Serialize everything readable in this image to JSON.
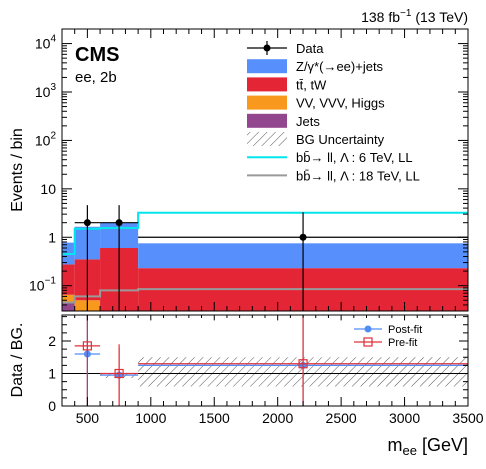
{
  "header": {
    "lumi": "138 fb",
    "lumi_exp": "−1",
    "lumi_tail": " (13 TeV)"
  },
  "cms": {
    "label": "CMS",
    "channel": "ee, 2b"
  },
  "chart_data": [
    {
      "type": "bar",
      "panel": "main",
      "ylabel": "Events / bin",
      "yscale": "log",
      "ylim": [
        0.03,
        20000
      ],
      "xlim": [
        300,
        3500
      ],
      "grid": false,
      "legend_position": "top-right",
      "y_ticks": [
        {
          "v": 0.1,
          "base": "10",
          "exp": "−1"
        },
        {
          "v": 1,
          "text": "1"
        },
        {
          "v": 10,
          "text": "10"
        },
        {
          "v": 100,
          "base": "10",
          "exp": "2"
        },
        {
          "v": 1000,
          "base": "10",
          "exp": "3"
        },
        {
          "v": 10000,
          "base": "10",
          "exp": "4"
        }
      ],
      "bins": [
        {
          "lo": 300,
          "hi": 400
        },
        {
          "lo": 400,
          "hi": 600
        },
        {
          "lo": 600,
          "hi": 900
        },
        {
          "lo": 900,
          "hi": 3500
        }
      ],
      "stack": [
        {
          "name": "Jets",
          "color": "#92468e",
          "values": [
            0.045,
            0.0,
            0.0,
            0.0
          ]
        },
        {
          "name": "VV, VVV, Higgs",
          "color": "#f8981d",
          "values": [
            0.02,
            0.05,
            0.0,
            0.0
          ]
        },
        {
          "name": "tt̄, tW",
          "color": "#e42536",
          "values": [
            0.21,
            0.3,
            0.6,
            0.23
          ]
        },
        {
          "name": "Z/γ*(→ee)+jets",
          "color": "#5790fc",
          "values": [
            0.5,
            1.3,
            1.4,
            0.52
          ]
        }
      ],
      "data": {
        "name": "Data",
        "points": [
          {
            "x": 500,
            "y": 2,
            "xerr": [
              400,
              600
            ],
            "yerr": [
              0.03,
              4.6
            ]
          },
          {
            "x": 750,
            "y": 2,
            "xerr": [
              600,
              900
            ],
            "yerr": [
              0.03,
              4.6
            ]
          },
          {
            "x": 2200,
            "y": 1,
            "xerr": [
              900,
              3500
            ],
            "yerr": [
              0.03,
              3.3
            ]
          }
        ]
      },
      "signals": [
        {
          "name": "bb̄→ ll,   Λ : 6 TeV, LL",
          "color": "#00e5ee",
          "edges": [
            300,
            400,
            600,
            900,
            3500
          ],
          "values": [
            0.45,
            1.5,
            1.55,
            3.2
          ]
        },
        {
          "name": "bb̄→ ll,   Λ : 18 TeV, LL",
          "color": "#9a9a9a",
          "edges": [
            300,
            400,
            600,
            900,
            3500
          ],
          "values": [
            0.045,
            0.06,
            0.08,
            0.085
          ]
        }
      ],
      "uncertainty_label": "BG Uncertainty",
      "legend": [
        {
          "kind": "data",
          "label": "Data"
        },
        {
          "kind": "fill",
          "color": "#5790fc",
          "label": "Z/γ*(→ee)+jets"
        },
        {
          "kind": "fill",
          "color": "#e42536",
          "label": "tt̄, tW"
        },
        {
          "kind": "fill",
          "color": "#f8981d",
          "label": "VV, VVV, Higgs"
        },
        {
          "kind": "fill",
          "color": "#92468e",
          "label": "Jets"
        },
        {
          "kind": "hatch",
          "label": "BG Uncertainty"
        },
        {
          "kind": "line",
          "color": "#00e5ee",
          "label": "bb̄→ ll,   Λ : 6 TeV, LL"
        },
        {
          "kind": "line",
          "color": "#9a9a9a",
          "label": "bb̄→ ll,   Λ : 18 TeV, LL"
        }
      ]
    },
    {
      "type": "scatter",
      "panel": "ratio",
      "ylabel": "Data / BG.",
      "xlabel": "m",
      "xlabel_sub": "ee",
      "xlabel_unit": " [GeV]",
      "ylim": [
        0,
        2.8
      ],
      "xlim": [
        300,
        3500
      ],
      "x_ticks": [
        500,
        1000,
        1500,
        2000,
        2500,
        3000,
        3500
      ],
      "y_ticks": [
        0,
        1,
        2
      ],
      "unity_line": 1,
      "uncertainty_band": [
        {
          "lo": 300,
          "hi": 400,
          "y0": 1.0,
          "y1": 1.0
        },
        {
          "lo": 400,
          "hi": 600,
          "y0": 1.0,
          "y1": 1.0
        },
        {
          "lo": 600,
          "hi": 900,
          "y0": 0.86,
          "y1": 1.0
        },
        {
          "lo": 900,
          "hi": 3500,
          "y0": 0.6,
          "y1": 1.5
        }
      ],
      "series": [
        {
          "name": "Post-fit",
          "color": "#4f8ef7",
          "marker": "circle",
          "points": [
            {
              "x": 500,
              "y": 1.6,
              "xerr": [
                400,
                600
              ],
              "yerr": [
                0.0,
                2.8
              ]
            },
            {
              "x": 750,
              "y": 0.95,
              "xerr": [
                600,
                900
              ],
              "yerr": [
                0.0,
                1.8
              ]
            },
            {
              "x": 2200,
              "y": 1.25,
              "xerr": [
                900,
                3500
              ],
              "yerr": [
                0.0,
                2.8
              ]
            }
          ]
        },
        {
          "name": "Pre-fit",
          "color": "#e0303a",
          "marker": "open-square",
          "points": [
            {
              "x": 500,
              "y": 1.85,
              "xerr": [
                400,
                600
              ],
              "yerr": [
                0.0,
                2.8
              ]
            },
            {
              "x": 750,
              "y": 1.0,
              "xerr": [
                600,
                900
              ],
              "yerr": [
                0.0,
                1.9
              ]
            },
            {
              "x": 2200,
              "y": 1.3,
              "xerr": [
                900,
                3500
              ],
              "yerr": [
                0.0,
                2.8
              ]
            }
          ]
        }
      ]
    }
  ]
}
